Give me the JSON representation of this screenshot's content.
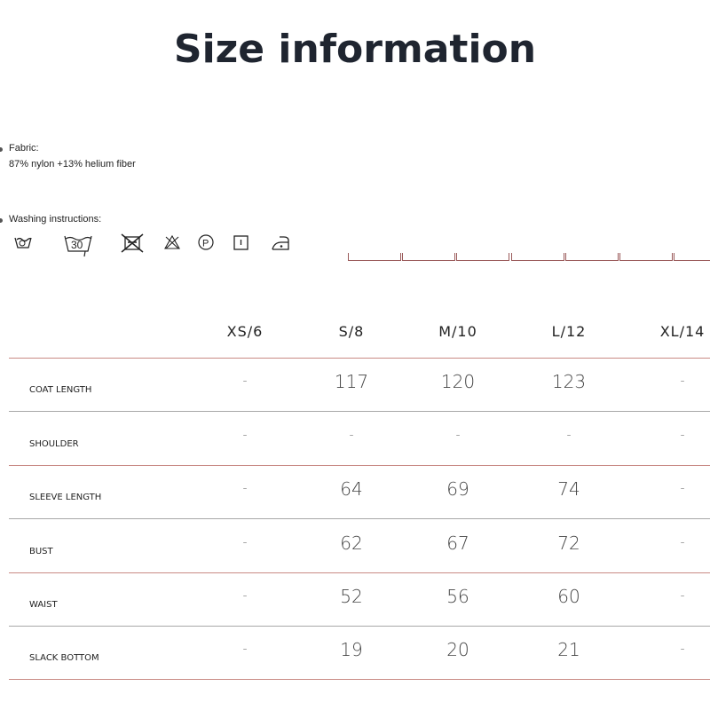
{
  "title": "Size information",
  "fabric": {
    "label": "Fabric:",
    "value": "87% nylon +13% helium fiber"
  },
  "washing": {
    "label": "Washing instructions:",
    "icons": [
      "hand-wash-icon",
      "wash-30-icon",
      "do-not-tumble-dry-icon",
      "do-not-bleach-icon",
      "dry-clean-p-icon",
      "line-dry-icon",
      "iron-low-icon"
    ],
    "wash_temp": "30"
  },
  "table": {
    "headers": [
      "XS/6",
      "S/8",
      "M/10",
      "L/12",
      "XL/14"
    ],
    "rows": [
      {
        "label": "COAT LENGTH",
        "values": [
          "-",
          "117",
          "120",
          "123",
          "-"
        ]
      },
      {
        "label": "SHOULDER",
        "values": [
          "-",
          "-",
          "-",
          "-",
          "-"
        ]
      },
      {
        "label": "SLEEVE LENGTH",
        "values": [
          "-",
          "64",
          "69",
          "74",
          "-"
        ]
      },
      {
        "label": "BUST",
        "values": [
          "-",
          "62",
          "67",
          "72",
          "-"
        ]
      },
      {
        "label": "WAIST",
        "values": [
          "-",
          "52",
          "56",
          "60",
          "-"
        ]
      },
      {
        "label": "SLACK BOTTOM",
        "values": [
          "-",
          "19",
          "20",
          "21",
          "-"
        ]
      }
    ]
  },
  "colors": {
    "line_red": "#c98a85",
    "line_grey": "#a8a8a8",
    "title": "#1f2530"
  }
}
